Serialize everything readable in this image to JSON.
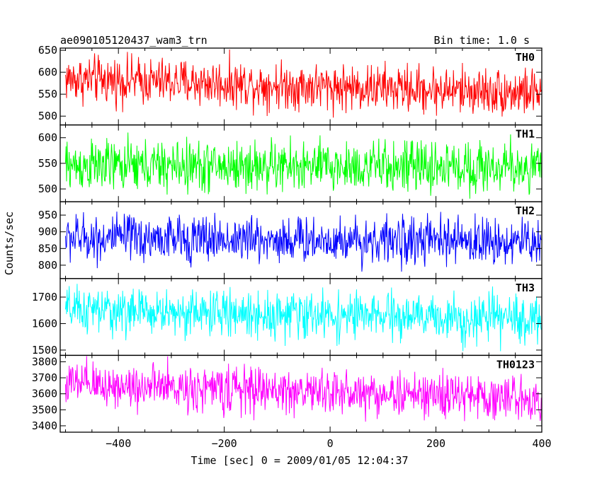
{
  "header": {
    "title": "ae090105120437_wam3_trn",
    "bin_time": "Bin time: 1.0 s"
  },
  "chart_data": {
    "type": "line",
    "xlabel": "Time [sec] 0 = 2009/01/05 12:04:37",
    "ylabel": "Counts/sec",
    "xlim": [
      -510,
      400
    ],
    "xticks": [
      -400,
      -200,
      0,
      200,
      400
    ],
    "x": {
      "start": -500,
      "end": 399,
      "step": 1
    },
    "panels": [
      {
        "name": "TH0",
        "color": "#ff0000",
        "ylim": [
          480,
          655
        ],
        "yticks": [
          500,
          550,
          600,
          650
        ],
        "mean_start": 585,
        "mean_end": 553,
        "spread": 32
      },
      {
        "name": "TH1",
        "color": "#00ff00",
        "ylim": [
          475,
          625
        ],
        "yticks": [
          500,
          550,
          600
        ],
        "mean_start": 545,
        "mean_end": 542,
        "spread": 30
      },
      {
        "name": "TH2",
        "color": "#0000ff",
        "ylim": [
          760,
          990
        ],
        "yticks": [
          800,
          850,
          900,
          950
        ],
        "mean_start": 882,
        "mean_end": 870,
        "spread": 42
      },
      {
        "name": "TH3",
        "color": "#00ffff",
        "ylim": [
          1480,
          1770
        ],
        "yticks": [
          1500,
          1600,
          1700
        ],
        "mean_start": 1650,
        "mean_end": 1615,
        "spread": 52
      },
      {
        "name": "TH0123",
        "color": "#ff00ff",
        "ylim": [
          3360,
          3840
        ],
        "yticks": [
          3400,
          3500,
          3600,
          3700,
          3800
        ],
        "mean_start": 3660,
        "mean_end": 3570,
        "spread": 85
      }
    ]
  }
}
